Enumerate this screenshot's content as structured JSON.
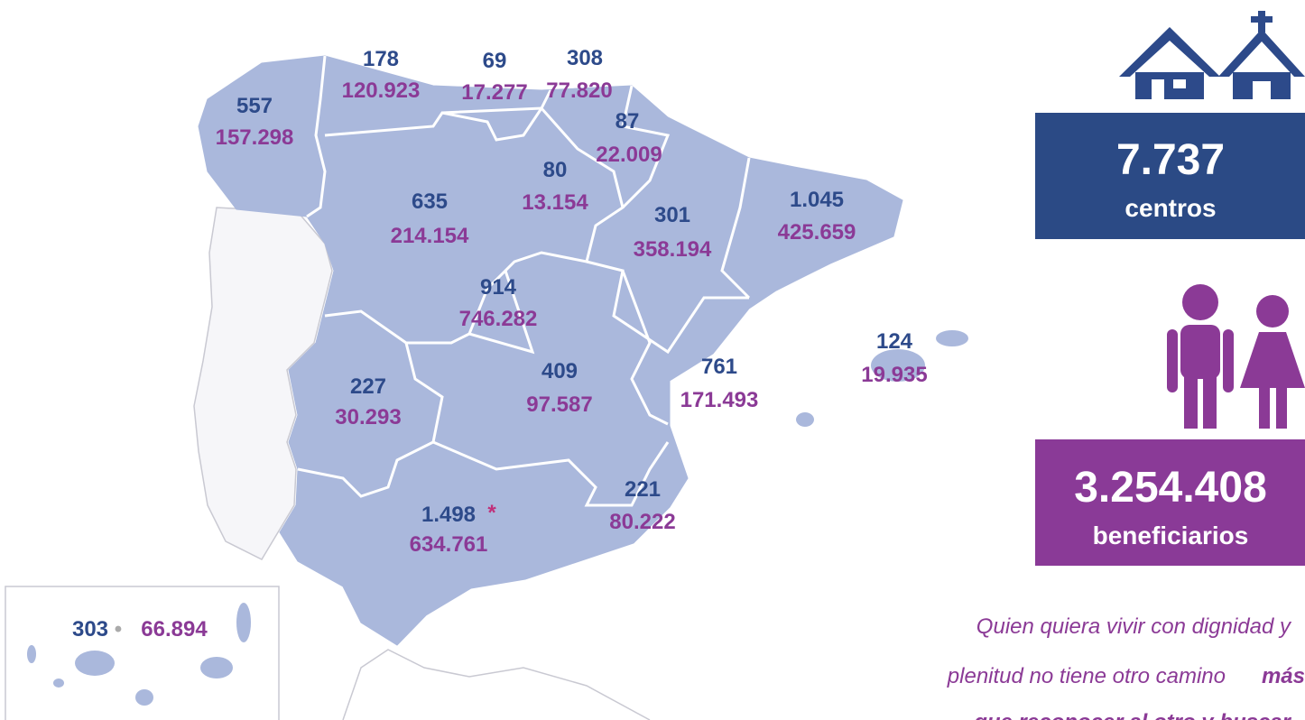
{
  "regions": [
    {
      "centros": "557",
      "beneficiarios": "157.298"
    },
    {
      "centros": "178",
      "beneficiarios": "120.923"
    },
    {
      "centros": "69",
      "beneficiarios": "17.277"
    },
    {
      "centros": "308",
      "beneficiarios": "77.820"
    },
    {
      "centros": "87",
      "beneficiarios": "22.009"
    },
    {
      "centros": "80",
      "beneficiarios": "13.154"
    },
    {
      "centros": "635",
      "beneficiarios": "214.154"
    },
    {
      "centros": "301",
      "beneficiarios": "358.194"
    },
    {
      "centros": "1.045",
      "beneficiarios": "425.659"
    },
    {
      "centros": "914",
      "beneficiarios": "746.282"
    },
    {
      "centros": "227",
      "beneficiarios": "30.293"
    },
    {
      "centros": "409",
      "beneficiarios": "97.587"
    },
    {
      "centros": "761",
      "beneficiarios": "171.493"
    },
    {
      "centros": "124",
      "beneficiarios": "19.935"
    },
    {
      "centros": "221",
      "beneficiarios": "80.222"
    },
    {
      "centros": "1.498",
      "beneficiarios": "634.761",
      "note": "*"
    }
  ],
  "canarias": {
    "centros": "303",
    "separator": "•",
    "beneficiarios": "66.894"
  },
  "totals": {
    "centros_value": "7.737",
    "centros_label": "centros",
    "beneficiarios_value": "3.254.408",
    "beneficiarios_label": "beneficiarios"
  },
  "quote": {
    "line1": "Quien quiera vivir con dignidad y",
    "line2": "plenitud no tiene otro camino",
    "line2_bold": "más",
    "line3": "que reconocer al otro y buscar"
  }
}
